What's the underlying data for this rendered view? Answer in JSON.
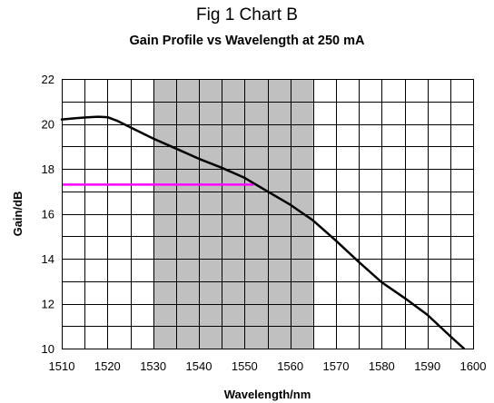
{
  "figure_title": "Fig 1 Chart B",
  "chart_data": {
    "type": "line",
    "title": "Gain Profile vs Wavelength at 250 mA",
    "xlabel": "Wavelength/nm",
    "ylabel": "Gain/dB",
    "xlim": [
      1510,
      1600
    ],
    "ylim": [
      10,
      22
    ],
    "x_ticks": [
      "1510",
      "1520",
      "1530",
      "1540",
      "1550",
      "1560",
      "1570",
      "1580",
      "1590",
      "1600"
    ],
    "y_ticks": [
      "10",
      "12",
      "14",
      "16",
      "18",
      "20",
      "22"
    ],
    "x_gridlines": [
      1510,
      1515,
      1520,
      1525,
      1530,
      1535,
      1540,
      1545,
      1550,
      1555,
      1560,
      1565,
      1570,
      1575,
      1580,
      1585,
      1590,
      1595,
      1600
    ],
    "y_gridlines": [
      10,
      11,
      12,
      13,
      14,
      15,
      16,
      17,
      18,
      19,
      20,
      21,
      22
    ],
    "grid": true,
    "shaded_band": {
      "x_range": [
        1530,
        1565
      ],
      "color": "#c0c0c0"
    },
    "series": [
      {
        "color": "#000000",
        "x": [
          1510,
          1513,
          1516,
          1518,
          1520,
          1522,
          1525,
          1530,
          1535,
          1540,
          1545,
          1550,
          1555,
          1560,
          1565,
          1570,
          1575,
          1580,
          1585,
          1590,
          1595,
          1598
        ],
        "y": [
          20.2,
          20.25,
          20.3,
          20.32,
          20.3,
          20.15,
          19.85,
          19.35,
          18.9,
          18.45,
          18.05,
          17.6,
          17.0,
          16.4,
          15.7,
          14.8,
          13.85,
          12.95,
          12.25,
          11.5,
          10.55,
          10.0
        ]
      }
    ],
    "reference_line": {
      "color": "#ff00ff",
      "y": 17.3,
      "x_range": [
        1510,
        1552
      ]
    }
  }
}
